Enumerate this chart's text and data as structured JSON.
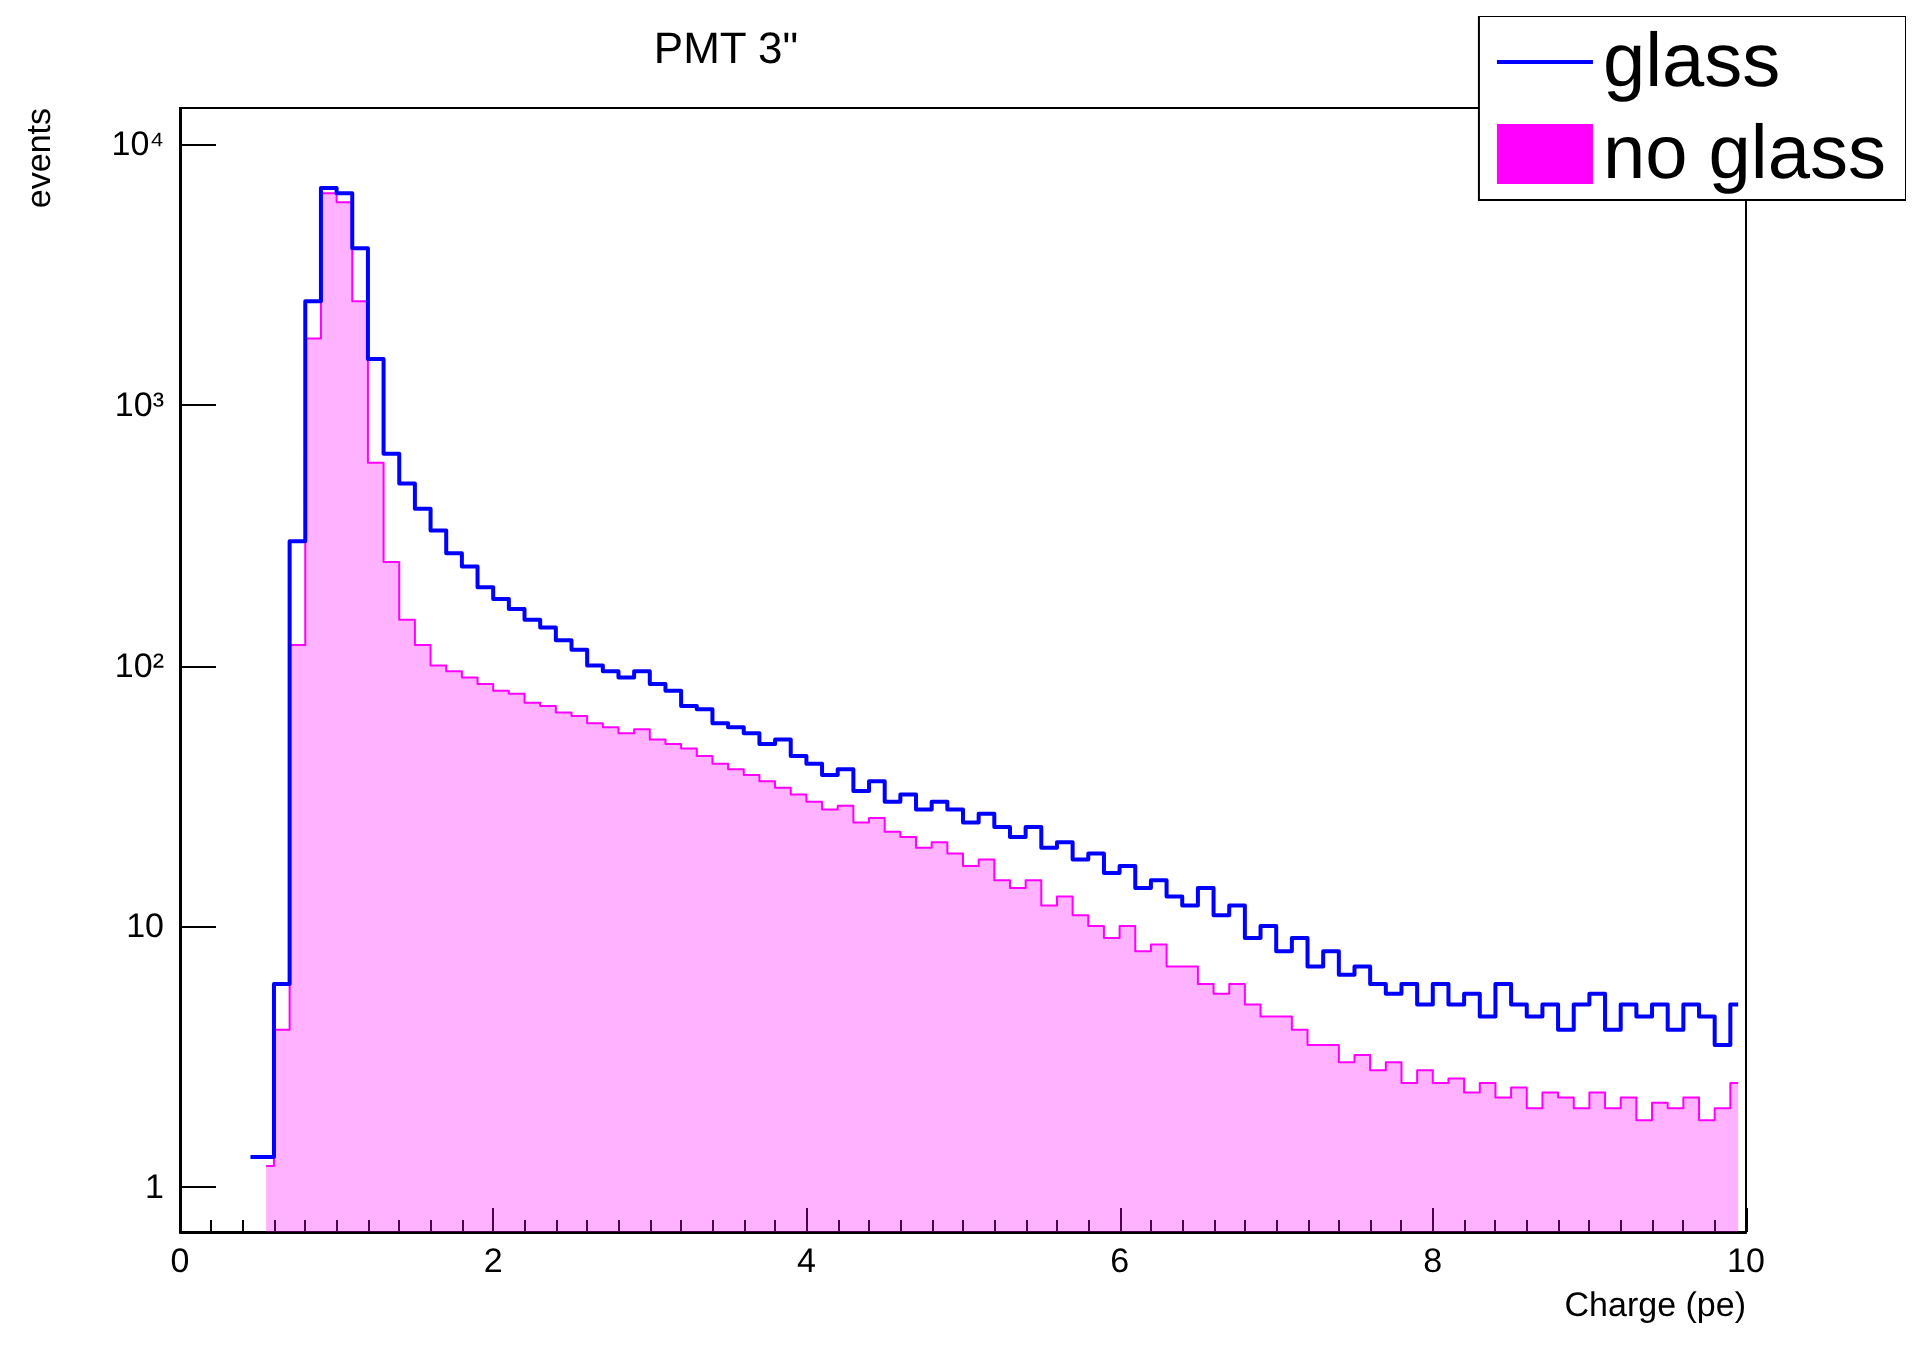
{
  "chart_data": {
    "type": "step",
    "title": "PMT 3\"",
    "xlabel": "Charge (pe)",
    "ylabel": "events",
    "x": [
      0.45,
      0.55,
      0.65,
      0.75,
      0.85,
      0.95,
      1.05,
      1.15,
      1.25,
      1.35,
      1.45,
      1.55,
      1.65,
      1.75,
      1.85,
      1.95,
      2.05,
      2.15,
      2.25,
      2.35,
      2.45,
      2.55,
      2.65,
      2.75,
      2.85,
      2.95,
      3.05,
      3.15,
      3.25,
      3.35,
      3.45,
      3.55,
      3.65,
      3.75,
      3.85,
      3.95,
      4.05,
      4.15,
      4.25,
      4.35,
      4.45,
      4.55,
      4.65,
      4.75,
      4.85,
      4.95,
      5.05,
      5.15,
      5.25,
      5.35,
      5.45,
      5.55,
      5.65,
      5.75,
      5.85,
      5.95,
      6.05,
      6.15,
      6.25,
      6.35,
      6.45,
      6.55,
      6.65,
      6.75,
      6.85,
      6.95,
      7.05,
      7.15,
      7.25,
      7.35,
      7.45,
      7.55,
      7.65,
      7.75,
      7.85,
      7.95,
      8.05,
      8.15,
      8.25,
      8.35,
      8.45,
      8.55,
      8.65,
      8.75,
      8.85,
      8.95,
      9.05,
      9.15,
      9.25,
      9.35,
      9.45,
      9.55,
      9.65,
      9.75,
      9.85,
      9.95
    ],
    "series": [
      {
        "name": "glass",
        "type": "step",
        "color": "#0000ff",
        "values": [
          1.3,
          1.3,
          6,
          300,
          2500,
          6800,
          6500,
          4000,
          1500,
          650,
          500,
          400,
          330,
          270,
          240,
          200,
          180,
          165,
          150,
          140,
          125,
          115,
          100,
          95,
          90,
          95,
          85,
          80,
          70,
          68,
          60,
          58,
          55,
          50,
          52,
          45,
          42,
          38,
          40,
          33,
          36,
          30,
          32,
          28,
          30,
          28,
          25,
          27,
          24,
          22,
          24,
          20,
          21,
          18,
          19,
          16,
          17,
          14,
          15,
          13,
          12,
          14,
          11,
          12,
          9,
          10,
          8,
          9,
          7,
          8,
          6.5,
          7,
          6,
          5.5,
          6,
          5,
          6,
          5,
          5.5,
          4.5,
          6,
          5,
          4.5,
          5,
          4,
          5,
          5.5,
          4,
          5,
          4.5,
          5,
          4,
          5,
          4.5,
          3.5,
          5
        ]
      },
      {
        "name": "no glass",
        "type": "area",
        "color": "#ff00ff",
        "x": [
          0.55,
          0.65,
          0.75,
          0.85,
          0.95,
          1.05,
          1.15,
          1.25,
          1.35,
          1.45,
          1.55,
          1.65,
          1.75,
          1.85,
          1.95,
          2.05,
          2.15,
          2.25,
          2.35,
          2.45,
          2.55,
          2.65,
          2.75,
          2.85,
          2.95,
          3.05,
          3.15,
          3.25,
          3.35,
          3.45,
          3.55,
          3.65,
          3.75,
          3.85,
          3.95,
          4.05,
          4.15,
          4.25,
          4.35,
          4.45,
          4.55,
          4.65,
          4.75,
          4.85,
          4.95,
          5.05,
          5.15,
          5.25,
          5.35,
          5.45,
          5.55,
          5.65,
          5.75,
          5.85,
          5.95,
          6.05,
          6.15,
          6.25,
          6.35,
          6.45,
          6.55,
          6.65,
          6.75,
          6.85,
          6.95,
          7.05,
          7.15,
          7.25,
          7.35,
          7.45,
          7.55,
          7.65,
          7.75,
          7.85,
          7.95,
          8.05,
          8.15,
          8.25,
          8.35,
          8.45,
          8.55,
          8.65,
          8.75,
          8.85,
          8.95,
          9.05,
          9.15,
          9.25,
          9.35,
          9.45,
          9.55,
          9.65,
          9.75,
          9.85,
          9.95
        ],
        "values": [
          1.2,
          4,
          120,
          1800,
          6500,
          6000,
          2500,
          600,
          250,
          150,
          120,
          100,
          95,
          90,
          85,
          80,
          78,
          72,
          70,
          66,
          64,
          60,
          58,
          55,
          57,
          52,
          50,
          48,
          45,
          42,
          40,
          38,
          36,
          34,
          32,
          30,
          28,
          29,
          25,
          26,
          23,
          22,
          20,
          21,
          19,
          17,
          18,
          15,
          14,
          15,
          12,
          13,
          11,
          10,
          9,
          10,
          8,
          8.5,
          7,
          7,
          6,
          5.5,
          6,
          5,
          4.5,
          4.5,
          4,
          3.5,
          3.5,
          3,
          3.2,
          2.8,
          3,
          2.5,
          2.8,
          2.5,
          2.6,
          2.3,
          2.5,
          2.2,
          2.4,
          2,
          2.3,
          2.2,
          2,
          2.3,
          2,
          2.2,
          1.8,
          2.1,
          2,
          2.2,
          1.8,
          2,
          2.5
        ]
      }
    ],
    "xlim": [
      0,
      10
    ],
    "xticks": [
      0,
      2,
      4,
      6,
      8,
      10
    ],
    "ylim": [
      0.67,
      13800
    ],
    "yticks": [
      1,
      10,
      {
        "value": 100,
        "label": "10²"
      },
      {
        "value": 1000,
        "label": "10³"
      },
      {
        "value": 10000,
        "label": "10⁴"
      }
    ],
    "log": "y",
    "grid": false,
    "legend": "top right"
  }
}
